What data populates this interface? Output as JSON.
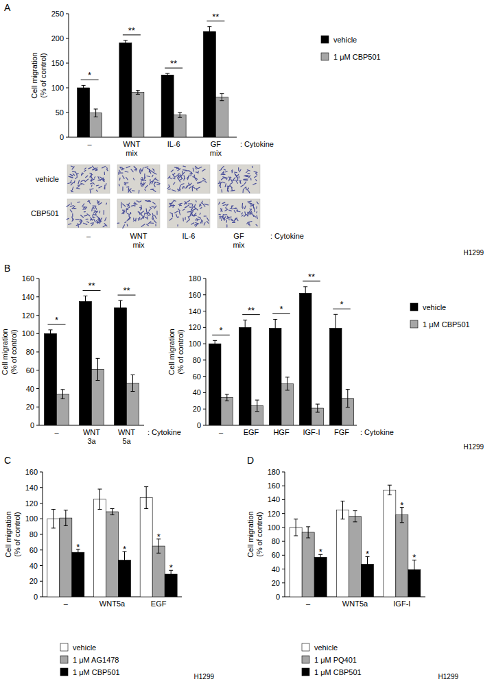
{
  "chart_data": [
    {
      "type": "bar",
      "panel": "A",
      "annotation": "H1299",
      "y_label": [
        "Cell migration",
        "(% of control)"
      ],
      "x_label": ": Cytokine",
      "categories": [
        "–",
        "WNT mix",
        "IL-6",
        "GF mix"
      ],
      "series": [
        {
          "name": "vehicle",
          "color": "#000000",
          "values": [
            100,
            191,
            126,
            214
          ],
          "errors": [
            5,
            5,
            3,
            10
          ]
        },
        {
          "name": "1 μM CBP501",
          "color": "#a6a6a6",
          "values": [
            49,
            91,
            45,
            81
          ],
          "errors": [
            8,
            4,
            5,
            7
          ]
        }
      ],
      "significance": [
        "*",
        "**",
        "**",
        "**"
      ],
      "ylim": [
        0,
        250
      ],
      "yticks": [
        0,
        50,
        100,
        150,
        200,
        250
      ],
      "grid": false,
      "legend": "right",
      "micrographs": {
        "rows": [
          "vehicle",
          "CBP501"
        ],
        "columns": [
          "–",
          "WNT mix",
          "IL-6",
          "GF mix"
        ],
        "axis_label": ": Cytokine"
      }
    },
    {
      "type": "bar",
      "panel": "B",
      "y_label": [
        "Cell migration",
        "(% of control)"
      ],
      "x_label": ": Cytokine",
      "categories": [
        "–",
        "WNT 3a",
        "WNT 5a"
      ],
      "series": [
        {
          "name": "vehicle",
          "color": "#000000",
          "values": [
            100,
            135,
            128
          ],
          "errors": [
            4,
            6,
            8
          ]
        },
        {
          "name": "1 μM CBP501",
          "color": "#a6a6a6",
          "values": [
            34,
            61,
            46
          ],
          "errors": [
            5,
            12,
            9
          ]
        }
      ],
      "significance": [
        "*",
        "**",
        "**"
      ],
      "ylim": [
        0,
        160
      ],
      "yticks": [
        0,
        20,
        40,
        60,
        80,
        100,
        120,
        140,
        160
      ],
      "grid": false
    },
    {
      "type": "bar",
      "annotation": "H1299",
      "y_label": [
        "Cell migration",
        "(% of control)"
      ],
      "x_label": ": Cytokine",
      "categories": [
        "–",
        "EGF",
        "HGF",
        "IGF-I",
        "FGF"
      ],
      "series": [
        {
          "name": "vehicle",
          "color": "#000000",
          "values": [
            100,
            120,
            119,
            162,
            119
          ],
          "errors": [
            4,
            9,
            11,
            8,
            17
          ]
        },
        {
          "name": "1 μM CBP501",
          "color": "#a6a6a6",
          "values": [
            34,
            24,
            51,
            21,
            33
          ],
          "errors": [
            4,
            7,
            8,
            5,
            11
          ]
        }
      ],
      "significance": [
        "*",
        "**",
        "*",
        "**",
        "*"
      ],
      "ylim": [
        0,
        180
      ],
      "yticks": [
        0,
        20,
        40,
        60,
        80,
        100,
        120,
        140,
        160,
        180
      ],
      "grid": false,
      "legend": "right"
    },
    {
      "type": "bar",
      "panel": "C",
      "annotation": "H1299",
      "y_label": [
        "Cell migration",
        "(% of control)"
      ],
      "categories": [
        "–",
        "WNT5a",
        "EGF"
      ],
      "series": [
        {
          "name": "vehicle",
          "color": "#ffffff",
          "values": [
            100,
            125,
            127
          ],
          "errors": [
            12,
            13,
            14
          ],
          "significance": [
            null,
            null,
            null
          ]
        },
        {
          "name": "1 μM AG1478",
          "color": "#a6a6a6",
          "values": [
            101,
            109,
            65
          ],
          "errors": [
            10,
            4,
            9
          ],
          "significance": [
            null,
            null,
            "*"
          ]
        },
        {
          "name": "1 μM CBP501",
          "color": "#000000",
          "values": [
            57,
            47,
            29
          ],
          "errors": [
            4,
            11,
            5
          ],
          "significance": [
            "*",
            "*",
            "*"
          ]
        }
      ],
      "ylim": [
        0,
        160
      ],
      "yticks": [
        0,
        20,
        40,
        60,
        80,
        100,
        120,
        140,
        160
      ],
      "grid": false,
      "legend": "bottom"
    },
    {
      "type": "bar",
      "panel": "D",
      "annotation": "H1299",
      "y_label": [
        "Cell migration",
        "(% of control)"
      ],
      "categories": [
        "–",
        "WNT5a",
        "IGF-I"
      ],
      "series": [
        {
          "name": "vehicle",
          "color": "#ffffff",
          "values": [
            100,
            125,
            154
          ],
          "errors": [
            12,
            13,
            7
          ],
          "significance": [
            null,
            null,
            null
          ]
        },
        {
          "name": "1 μM PQ401",
          "color": "#a6a6a6",
          "values": [
            93,
            116,
            118
          ],
          "errors": [
            8,
            8,
            11
          ],
          "significance": [
            null,
            null,
            "*"
          ]
        },
        {
          "name": "1 μM CBP501",
          "color": "#000000",
          "values": [
            57,
            47,
            39
          ],
          "errors": [
            4,
            11,
            14
          ],
          "significance": [
            "*",
            "*",
            "*"
          ]
        }
      ],
      "ylim": [
        0,
        180
      ],
      "yticks": [
        0,
        20,
        40,
        60,
        80,
        100,
        120,
        140,
        160,
        180
      ],
      "grid": false,
      "legend": "bottom"
    }
  ]
}
